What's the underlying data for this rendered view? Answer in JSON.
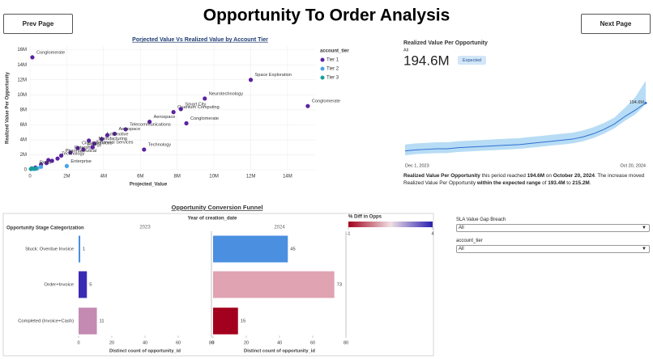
{
  "header": {
    "title": "Opportunity To Order Analysis",
    "prev_button": "Prev Page",
    "next_button": "Next Page"
  },
  "filters": [
    {
      "label": "SLA Value Gap Breach",
      "selected": "All"
    },
    {
      "label": "account_tier",
      "selected": "All"
    }
  ],
  "chart_data": [
    {
      "type": "scatter",
      "title": "Porjected Value Vs Realized Value by Account Tier",
      "x_label": "Projected_Value",
      "y_label": "Realized Value Per Opportunity",
      "legend_title": "account_tier",
      "xlim": [
        0,
        15500000
      ],
      "xticks": [
        0,
        {
          "value": 2000000,
          "label": "2M"
        },
        {
          "value": 4000000,
          "label": "4M"
        },
        {
          "value": 6000000,
          "label": "6M"
        },
        {
          "value": 8000000,
          "label": "8M"
        },
        {
          "value": 10000000,
          "label": "10M"
        },
        {
          "value": 12000000,
          "label": "12M"
        },
        {
          "value": 14000000,
          "label": "14M"
        }
      ],
      "ylim": [
        0,
        16500000
      ],
      "yticks": [
        0,
        {
          "value": 2000000,
          "label": "2M"
        },
        {
          "value": 4000000,
          "label": "4M"
        },
        {
          "value": 6000000,
          "label": "6M"
        },
        {
          "value": 8000000,
          "label": "8M"
        },
        {
          "value": 10000000,
          "label": "10M"
        },
        {
          "value": 12000000,
          "label": "12M"
        },
        {
          "value": 14000000,
          "label": "14M"
        },
        {
          "value": 16000000,
          "label": "16M"
        }
      ],
      "grid": true,
      "series": [
        {
          "name": "Tier 1",
          "color": "#5a22a0",
          "x": [
            130000,
            12000000,
            9500000,
            15100000,
            7800000,
            8200000,
            6500000,
            8500000,
            5200000,
            4600000,
            6200000,
            3900000,
            3500000,
            2900000,
            4200000,
            3200000,
            2600000,
            2200000,
            1700000,
            1500000,
            1000000,
            3400000,
            1200000,
            900000,
            600000,
            300000
          ],
          "values": [
            15000000,
            12000000,
            9500000,
            8500000,
            7700000,
            8100000,
            6400000,
            6200000,
            5400000,
            4800000,
            2700000,
            4100000,
            3500000,
            2700000,
            4600000,
            3900000,
            2900000,
            2300000,
            1900000,
            1500000,
            1300000,
            3000000,
            1200000,
            900000,
            700000,
            300000
          ],
          "labels": [
            "Conglomerate",
            "Space Exploration",
            "Neurotechnology",
            "Conglomerate",
            "Quantum Computing",
            "Smart City",
            "Aerospace",
            "Conglomerate",
            "Telecommunications",
            "Aerospace",
            "Technology",
            "Automotive",
            "Manufacturing",
            "Energy",
            null,
            null,
            "Cloud Services",
            "Enterprise",
            "Pharmaceutical",
            "Technology",
            null,
            "Financial Services",
            null,
            null,
            null,
            "Retail"
          ]
        },
        {
          "name": "Tier 2",
          "color": "#4aa3e6",
          "x": [
            2000000,
            400000,
            600000,
            200000
          ],
          "values": [
            500000,
            200000,
            400000,
            100000
          ],
          "labels": [
            "Enterprise",
            null,
            null,
            null
          ]
        },
        {
          "name": "Tier 3",
          "color": "#179e9a",
          "x": [
            50000,
            100000,
            300000
          ],
          "values": [
            100000,
            200000,
            150000
          ],
          "labels": [
            null,
            null,
            null
          ]
        }
      ]
    },
    {
      "type": "line",
      "title": "Realized Value Per Opportunity",
      "subtitle": "All",
      "kpi": "194.6M",
      "badge": "Expected",
      "categories": [
        "Dec 1, 2023",
        null,
        null,
        null,
        null,
        null,
        null,
        null,
        null,
        null,
        null,
        null,
        null,
        null,
        null,
        null,
        null,
        null,
        null,
        null,
        null,
        null,
        null,
        "Oct 20, 2024"
      ],
      "series": [
        {
          "name": "Realized Value Per Opportunity",
          "color": "#2f6fd1",
          "values": [
            150,
            151,
            151.5,
            152,
            152,
            153,
            153.5,
            154,
            154.5,
            155,
            155.5,
            156,
            157,
            158,
            159,
            160,
            161,
            163,
            166,
            170,
            175,
            182,
            188,
            194.6
          ],
          "value_labels": [
            null,
            null,
            null,
            null,
            null,
            null,
            null,
            null,
            null,
            null,
            null,
            null,
            null,
            null,
            null,
            null,
            null,
            null,
            null,
            null,
            null,
            null,
            null,
            "194.6M"
          ]
        }
      ],
      "band_color": "#b7dcf5",
      "band_lower": [
        146,
        147,
        147.5,
        148,
        148,
        149,
        149.5,
        150,
        150.5,
        151,
        151.5,
        152,
        153,
        154,
        155,
        156,
        157,
        159,
        162,
        166,
        171,
        178,
        184,
        193.4
      ],
      "band_upper": [
        156,
        157,
        157.5,
        158,
        158,
        159,
        159.5,
        160,
        160.5,
        161,
        161.5,
        162,
        163,
        164,
        165,
        166,
        167,
        169,
        172,
        176,
        181,
        190,
        200,
        215.2
      ],
      "narrative": [
        {
          "text": "Realized Value Per Opportunity",
          "bold": true
        },
        {
          "text": " this period reached ",
          "bold": false
        },
        {
          "text": "194.6M",
          "bold": true
        },
        {
          "text": " on ",
          "bold": false
        },
        {
          "text": "October 20, 2024",
          "bold": true
        },
        {
          "text": ". The increase moved Realized Value Per Opportunity ",
          "bold": false
        },
        {
          "text": "within the expected range",
          "bold": true
        },
        {
          "text": " of ",
          "bold": false
        },
        {
          "text": "193.4M",
          "bold": true
        },
        {
          "text": " to ",
          "bold": false
        },
        {
          "text": "215.2M",
          "bold": true
        },
        {
          "text": ".",
          "bold": false
        }
      ]
    },
    {
      "type": "bar",
      "orientation": "horizontal",
      "title": "Opportunity Conversion Funnel",
      "facet_label": "Year of creation_date",
      "y_label": "Opportunity Stage Categorization",
      "x_label": "Distinct count of opportunity_id",
      "categories": [
        "Stuck: Overdue Invoice",
        "Order+Invoice",
        "Completed (Invoice+Cash)"
      ],
      "xlim": [
        0,
        80
      ],
      "xticks": [
        0,
        20,
        40,
        60,
        80
      ],
      "panels": [
        {
          "name": "2023",
          "values": [
            1,
            5,
            11
          ],
          "colors": [
            "#4a8fe0",
            "#3a2bb4",
            "#c48ab2"
          ]
        },
        {
          "name": "2024",
          "values": [
            45,
            73,
            15
          ],
          "colors": [
            "#4a8fe0",
            "#dfa3b1",
            "#a3001d"
          ]
        }
      ],
      "colorbar": {
        "title": "% Diff in Opps",
        "lim": [
          -1,
          4
        ],
        "ticks": [
          -1,
          4
        ],
        "colors": [
          "#a3001d",
          "#f0e0e4",
          "#2a1fb0"
        ]
      }
    }
  ]
}
